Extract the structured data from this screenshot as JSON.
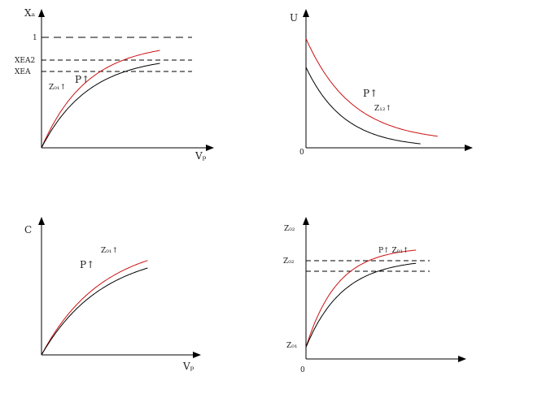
{
  "chart_data": [
    {
      "type": "line",
      "id": "panel1",
      "ylabel": "Xₐ",
      "xlabel": "Vₚ",
      "ylim": [
        0,
        1.05
      ],
      "xlim": [
        0,
        1.45
      ],
      "reference_levels": [
        {
          "value": 1.0,
          "label": "1"
        },
        {
          "value": 0.8,
          "label": "XEA2"
        },
        {
          "value": 0.7,
          "label": "XEA"
        }
      ],
      "series": [
        {
          "name": "red",
          "color": "#cc1111",
          "rate": 2.6,
          "asymptote": 0.8,
          "x_max": 1.0
        },
        {
          "name": "black",
          "color": "#000000",
          "rate": 2.5,
          "asymptote": 0.7,
          "x_max": 1.0
        }
      ],
      "annotations": [
        {
          "text": "P↑",
          "value": "P",
          "at": [
            0.3,
            0.6
          ]
        },
        {
          "text": "Z₀₁↑",
          "value": "Z",
          "at": [
            0.06,
            0.5
          ]
        }
      ]
    },
    {
      "type": "line",
      "id": "panel2",
      "ylabel": "U",
      "origin_label": "0",
      "ylim": [
        0,
        1.2
      ],
      "xlim": [
        0,
        1.45
      ],
      "series": [
        {
          "name": "red",
          "color": "#cc1111",
          "start": 0.95,
          "end": 0.05,
          "decay": 2.5,
          "x_max": 1.15
        },
        {
          "name": "black",
          "color": "#000000",
          "start": 0.7,
          "end": 0.0,
          "decay": 3.0,
          "x_max": 1.0
        }
      ],
      "annotations": [
        {
          "text": "P↑",
          "value": "P",
          "at": [
            0.5,
            0.45
          ]
        },
        {
          "text": "Z₁₂↑",
          "value": "Z",
          "at": [
            0.6,
            0.3
          ]
        }
      ]
    },
    {
      "type": "line",
      "id": "panel3",
      "ylabel": "C",
      "xlabel": "Vₚ",
      "ylim": [
        0,
        1.2
      ],
      "xlim": [
        0,
        1.45
      ],
      "series": [
        {
          "name": "red",
          "color": "#cc1111",
          "scale": 1.0,
          "rate": 1.8,
          "x_max": 0.97
        },
        {
          "name": "black",
          "color": "#000000",
          "scale": 0.92,
          "rate": 1.8,
          "x_max": 0.97
        }
      ],
      "annotations": [
        {
          "text": "Z₀₁↑",
          "value": "Z",
          "at": [
            0.55,
            0.9
          ]
        },
        {
          "text": "P↑",
          "value": "P",
          "at": [
            0.33,
            0.75
          ]
        }
      ]
    },
    {
      "type": "line",
      "id": "panel4",
      "ylabel": "Z₀₂",
      "origin_label": "0",
      "ylim": [
        0,
        1.2
      ],
      "xlim": [
        0,
        1.45
      ],
      "reference_levels": [
        {
          "value": 0.95,
          "label": "Z₀₂"
        },
        {
          "value": 0.85,
          "label": ""
        }
      ],
      "base": {
        "value": 0.1,
        "label": "Z₀₁"
      },
      "series": [
        {
          "name": "red",
          "color": "#cc1111",
          "asymptote": 0.95,
          "rate": 3.5,
          "x_max": 1.0
        },
        {
          "name": "black",
          "color": "#000000",
          "asymptote": 0.85,
          "rate": 3.0,
          "x_max": 1.0
        }
      ],
      "annotations": [
        {
          "text": "P↑ Z₀₁↑",
          "value": "P Z",
          "at": [
            0.6,
            1.0
          ]
        }
      ]
    }
  ]
}
